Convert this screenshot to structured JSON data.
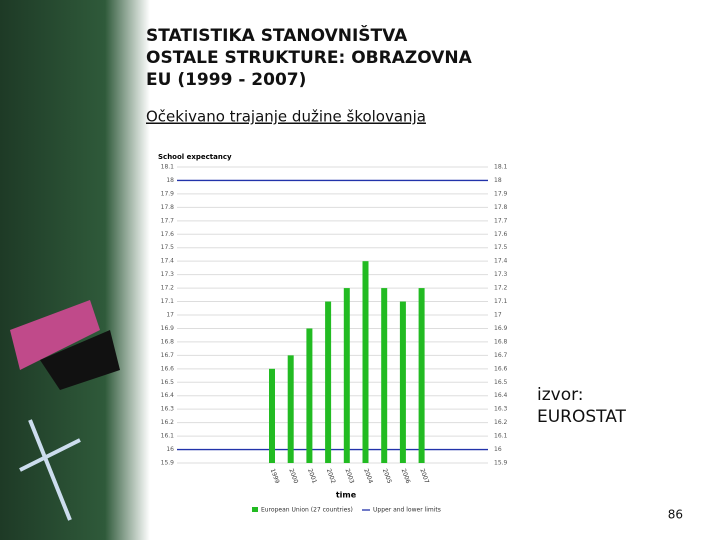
{
  "slide": {
    "title_lines": [
      "STATISTIKA STANOVNIŠTVA",
      "OSTALE STRUKTURE: OBRAZOVNA",
      "EU (1999 - 2007)"
    ],
    "subtitle": "Očekivano trajanje dužine školovanja",
    "source_lines": [
      "izvor:",
      "EUROSTAT"
    ],
    "page_number": "86"
  },
  "chart_data": {
    "type": "bar",
    "title": "School expectancy",
    "x_label": "time",
    "categories": [
      "1999",
      "2000",
      "2001",
      "2002",
      "2003",
      "2004",
      "2005",
      "2006",
      "2007"
    ],
    "series": [
      {
        "name": "European Union (27 countries)",
        "color": "#22bb22",
        "values": [
          16.6,
          16.7,
          16.9,
          17.1,
          17.2,
          17.4,
          17.2,
          17.1,
          17.2
        ]
      }
    ],
    "limits": {
      "name": "Upper and lower limits",
      "color": "#2233aa",
      "values": [
        18,
        16
      ]
    },
    "ylim": [
      15.9,
      18.1
    ],
    "yticks": [
      18.1,
      18,
      17.9,
      17.8,
      17.7,
      17.6,
      17.5,
      17.4,
      17.3,
      17.2,
      17.1,
      17,
      16.9,
      16.8,
      16.7,
      16.6,
      16.5,
      16.4,
      16.3,
      16.2,
      16.1,
      16,
      15.9
    ],
    "grid": true
  }
}
